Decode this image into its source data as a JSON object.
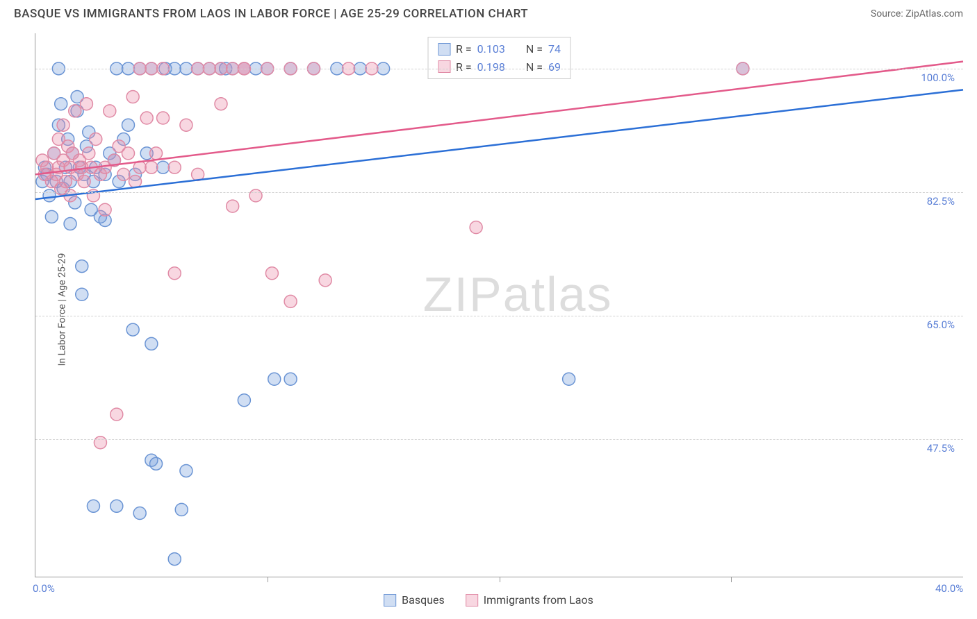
{
  "title": "BASQUE VS IMMIGRANTS FROM LAOS IN LABOR FORCE | AGE 25-29 CORRELATION CHART",
  "source": "Source: ZipAtlas.com",
  "watermark_big": "ZIP",
  "watermark_small": "atlas",
  "ylabel": "In Labor Force | Age 25-29",
  "chart": {
    "type": "scatter",
    "background_color": "#ffffff",
    "grid_color": "#d0d0d0",
    "grid_dash": "4,4",
    "axis_color": "#999999",
    "xlim": [
      0,
      40
    ],
    "ylim": [
      28,
      105
    ],
    "xticks": [
      0,
      40
    ],
    "xtick_labels": [
      "0.0%",
      "40.0%"
    ],
    "xtick_marks_only": [
      10,
      20,
      30
    ],
    "yticks": [
      47.5,
      65.0,
      82.5,
      100.0
    ],
    "ytick_labels": [
      "47.5%",
      "65.0%",
      "82.5%",
      "100.0%"
    ],
    "marker_radius": 9,
    "marker_stroke_width": 1.5,
    "trend_line_width": 2.5,
    "series": [
      {
        "name": "Basques",
        "fill_color": "rgba(120,160,220,0.35)",
        "stroke_color": "#6a94d4",
        "trend_color": "#2b6fd6",
        "R": "0.103",
        "N": "74",
        "trend": {
          "x1": 0,
          "y1": 81.5,
          "x2": 40,
          "y2": 97.0
        },
        "points": [
          [
            0.5,
            85
          ],
          [
            0.6,
            82
          ],
          [
            0.7,
            79
          ],
          [
            0.8,
            88
          ],
          [
            0.9,
            84
          ],
          [
            1.0,
            92
          ],
          [
            1.0,
            100
          ],
          [
            1.1,
            95
          ],
          [
            1.2,
            83
          ],
          [
            1.3,
            86
          ],
          [
            1.4,
            90
          ],
          [
            1.5,
            78
          ],
          [
            1.5,
            84
          ],
          [
            1.6,
            88
          ],
          [
            1.7,
            81
          ],
          [
            1.8,
            94
          ],
          [
            1.9,
            86
          ],
          [
            2.0,
            72
          ],
          [
            2.0,
            68
          ],
          [
            2.1,
            85
          ],
          [
            2.2,
            89
          ],
          [
            2.3,
            91
          ],
          [
            2.4,
            80
          ],
          [
            2.5,
            84
          ],
          [
            2.6,
            86
          ],
          [
            2.8,
            79
          ],
          [
            3.0,
            78.5
          ],
          [
            3.0,
            85
          ],
          [
            3.2,
            88
          ],
          [
            3.4,
            87
          ],
          [
            3.5,
            100
          ],
          [
            3.6,
            84
          ],
          [
            3.8,
            90
          ],
          [
            4.0,
            100
          ],
          [
            4.0,
            92
          ],
          [
            4.2,
            63
          ],
          [
            4.3,
            85
          ],
          [
            4.5,
            100
          ],
          [
            4.8,
            88
          ],
          [
            5.0,
            61
          ],
          [
            5.0,
            100
          ],
          [
            5.0,
            44.5
          ],
          [
            5.2,
            44
          ],
          [
            5.5,
            86
          ],
          [
            5.6,
            100
          ],
          [
            6.0,
            100
          ],
          [
            6.0,
            30.5
          ],
          [
            6.5,
            100
          ],
          [
            6.5,
            43
          ],
          [
            6.3,
            37.5
          ],
          [
            7.0,
            100
          ],
          [
            7.5,
            100
          ],
          [
            8.0,
            100
          ],
          [
            8.2,
            100
          ],
          [
            8.5,
            100
          ],
          [
            9.0,
            100
          ],
          [
            9.0,
            53
          ],
          [
            9.5,
            100
          ],
          [
            10.0,
            100
          ],
          [
            10.3,
            56
          ],
          [
            11.0,
            100
          ],
          [
            11.0,
            56
          ],
          [
            12.0,
            100
          ],
          [
            13.0,
            100
          ],
          [
            14.0,
            100
          ],
          [
            15.0,
            100
          ],
          [
            23.0,
            56
          ],
          [
            30.5,
            100
          ],
          [
            2.5,
            38
          ],
          [
            3.5,
            38
          ],
          [
            1.8,
            96
          ],
          [
            0.4,
            86
          ],
          [
            0.3,
            84
          ],
          [
            4.5,
            37
          ]
        ]
      },
      {
        "name": "Immigrants from Laos",
        "fill_color": "rgba(235,140,170,0.35)",
        "stroke_color": "#e08aa5",
        "trend_color": "#e35a8a",
        "R": "0.198",
        "N": "69",
        "trend": {
          "x1": 0,
          "y1": 85.0,
          "x2": 40,
          "y2": 101.0
        },
        "points": [
          [
            0.5,
            86
          ],
          [
            0.7,
            84
          ],
          [
            0.8,
            88
          ],
          [
            0.9,
            85
          ],
          [
            1.0,
            90
          ],
          [
            1.0,
            86
          ],
          [
            1.1,
            83
          ],
          [
            1.2,
            87
          ],
          [
            1.3,
            84
          ],
          [
            1.4,
            89
          ],
          [
            1.5,
            86
          ],
          [
            1.5,
            82
          ],
          [
            1.6,
            88
          ],
          [
            1.7,
            94
          ],
          [
            1.8,
            85
          ],
          [
            1.9,
            87
          ],
          [
            2.0,
            86
          ],
          [
            2.1,
            84
          ],
          [
            2.2,
            95
          ],
          [
            2.3,
            88
          ],
          [
            2.4,
            86
          ],
          [
            2.5,
            82
          ],
          [
            2.6,
            90
          ],
          [
            2.8,
            85
          ],
          [
            3.0,
            86
          ],
          [
            3.0,
            80
          ],
          [
            3.2,
            94
          ],
          [
            3.4,
            87
          ],
          [
            3.5,
            51
          ],
          [
            3.6,
            89
          ],
          [
            3.8,
            85
          ],
          [
            4.0,
            88
          ],
          [
            4.2,
            96
          ],
          [
            4.3,
            84
          ],
          [
            4.5,
            86
          ],
          [
            4.5,
            100
          ],
          [
            4.8,
            93
          ],
          [
            5.0,
            86
          ],
          [
            5.0,
            100
          ],
          [
            5.2,
            88
          ],
          [
            5.5,
            100
          ],
          [
            5.5,
            93
          ],
          [
            6.0,
            71
          ],
          [
            6.0,
            86
          ],
          [
            6.5,
            92
          ],
          [
            7.0,
            85
          ],
          [
            7.0,
            100
          ],
          [
            7.5,
            100
          ],
          [
            8.0,
            100
          ],
          [
            8.0,
            95
          ],
          [
            8.5,
            100
          ],
          [
            8.5,
            80.5
          ],
          [
            9.0,
            100
          ],
          [
            9.0,
            100
          ],
          [
            9.5,
            82
          ],
          [
            10.0,
            100
          ],
          [
            10.2,
            71
          ],
          [
            11.0,
            100
          ],
          [
            11.0,
            67
          ],
          [
            12.0,
            100
          ],
          [
            12.5,
            70
          ],
          [
            13.5,
            100
          ],
          [
            14.5,
            100
          ],
          [
            19.0,
            77.5
          ],
          [
            30.5,
            100
          ],
          [
            2.8,
            47
          ],
          [
            1.2,
            92
          ],
          [
            0.4,
            85
          ],
          [
            0.3,
            87
          ]
        ]
      }
    ]
  },
  "legend_top_labels": {
    "R": "R =",
    "N": "N ="
  },
  "legend_bottom": [
    {
      "label": "Basques",
      "series_index": 0
    },
    {
      "label": "Immigrants from Laos",
      "series_index": 1
    }
  ]
}
